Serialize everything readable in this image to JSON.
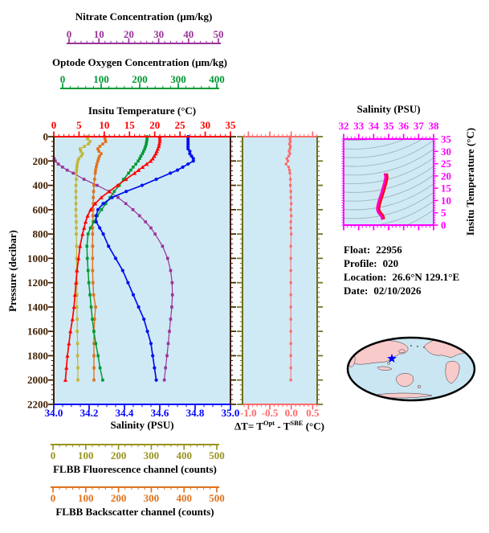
{
  "info": {
    "rows": [
      {
        "label": "Float:",
        "value": "22956"
      },
      {
        "label": "Profile:",
        "value": "020"
      },
      {
        "label": "Location:",
        "value": "26.6°N  129.1°E"
      },
      {
        "label": "Date:",
        "value": "02/10/2026"
      }
    ]
  },
  "colors": {
    "plot_bg": "#cfeaf5",
    "frame": "#401f00",
    "mid_spine": "#6e6e1e",
    "contour": "#9fb4ba"
  },
  "axes": {
    "nitrate": {
      "title": "Nitrate Concentration (μm/kg)",
      "color": "#993399",
      "ticks": [
        "0",
        "10",
        "20",
        "30",
        "40",
        "50"
      ],
      "minor": 2
    },
    "oxygen": {
      "title": "Optode Oxygen Concentration (μm/kg)",
      "color": "#009933",
      "ticks": [
        "0",
        "100",
        "200",
        "300",
        "400"
      ],
      "minor": 20
    },
    "temperature": {
      "title": "Insitu Temperature (°C)",
      "color": "#ff0000",
      "ticks": [
        "0",
        "5",
        "10",
        "15",
        "20",
        "25",
        "30",
        "35"
      ],
      "minor": 1
    },
    "pressure": {
      "title": "Pressure (decibar)",
      "color": "#401f00",
      "ticks": [
        "0",
        "200",
        "400",
        "600",
        "800",
        "1000",
        "1200",
        "1400",
        "1600",
        "1800",
        "2000",
        "2200"
      ],
      "minor": 40
    },
    "salinity": {
      "title": "Salinity (PSU)",
      "color": "#0000ff",
      "ticks": [
        "34.0",
        "34.2",
        "34.4",
        "34.6",
        "34.8",
        "35.0"
      ],
      "minor": 0.05
    },
    "fluorescence": {
      "title": "FLBB Fluorescence channel (counts)",
      "color": "#99941f",
      "ticks": [
        "0",
        "100",
        "200",
        "300",
        "400",
        "500"
      ],
      "minor": 20
    },
    "backscatter": {
      "title": "FLBB Backscatter channel (counts)",
      "color": "#e0721c",
      "ticks": [
        "0",
        "100",
        "200",
        "300",
        "400",
        "500"
      ],
      "minor": 20
    },
    "deltaT": {
      "label_pre": "ΔT= T",
      "label_sup1": "Opt",
      "label_mid": " - T",
      "label_sup2": "SBE",
      "label_post": " (°C)",
      "color": "#ff6b6b",
      "ticks": [
        "-1.0",
        "-0.5",
        "0.0",
        "0.5"
      ],
      "minor": 0.1
    },
    "ts_salinity": {
      "title": "Salinity (PSU)",
      "color": "#ff00ff",
      "ticks": [
        "32",
        "33",
        "34",
        "35",
        "36",
        "37",
        "38"
      ],
      "minor": 0.25
    },
    "ts_temperature": {
      "title": "Insitu Temperature (°C)",
      "color": "#ff00ff",
      "ticks": [
        "0",
        "5",
        "10",
        "15",
        "20",
        "25",
        "30",
        "35"
      ],
      "minor": 1
    }
  },
  "chart_data": [
    {
      "type": "line",
      "name": "vertical-profiles",
      "y_axis": {
        "label": "Pressure (decibar)",
        "range": [
          0,
          2200
        ],
        "direction": "down"
      },
      "pressure_db": [
        0,
        20,
        40,
        60,
        80,
        100,
        120,
        140,
        160,
        180,
        200,
        225,
        250,
        275,
        300,
        350,
        400,
        450,
        500,
        550,
        600,
        650,
        700,
        750,
        800,
        900,
        1000,
        1100,
        1200,
        1300,
        1400,
        1500,
        1600,
        1700,
        1800,
        1900,
        2000
      ],
      "series": [
        {
          "name": "Salinity",
          "units": "PSU",
          "color": "#0011ee",
          "marker": "circle",
          "x_range": [
            34.0,
            35.0
          ],
          "values": [
            34.76,
            34.76,
            34.76,
            34.76,
            34.76,
            34.76,
            34.77,
            34.77,
            34.78,
            34.79,
            34.79,
            34.76,
            34.73,
            34.7,
            34.66,
            34.58,
            34.5,
            34.41,
            34.33,
            34.28,
            34.25,
            34.24,
            34.24,
            34.26,
            34.28,
            34.31,
            34.35,
            34.39,
            34.42,
            34.45,
            34.48,
            34.51,
            34.53,
            34.55,
            34.56,
            34.57,
            34.58
          ]
        },
        {
          "name": "Insitu Temperature",
          "units": "°C",
          "color": "#ff0000",
          "marker": "triangle",
          "x_range": [
            0,
            35
          ],
          "values": [
            21.0,
            21.0,
            21.0,
            20.9,
            20.8,
            20.6,
            20.4,
            20.2,
            19.9,
            19.6,
            19.2,
            18.4,
            17.6,
            16.8,
            16.0,
            14.3,
            12.6,
            11.0,
            9.4,
            8.2,
            7.3,
            6.7,
            6.3,
            6.0,
            5.7,
            5.2,
            4.9,
            4.6,
            4.4,
            4.2,
            4.0,
            3.7,
            3.3,
            3.0,
            2.7,
            2.5,
            2.3
          ]
        },
        {
          "name": "Optode Oxygen Concentration",
          "units": "μm/kg",
          "color": "#009933",
          "marker": "square",
          "x_range": [
            0,
            400
          ],
          "values": [
            219,
            219,
            218,
            217,
            215,
            213,
            210,
            207,
            203,
            200,
            196,
            190,
            183,
            177,
            171,
            158,
            147,
            134,
            123,
            112,
            101,
            90,
            81,
            72,
            66,
            63,
            64,
            66,
            68,
            71,
            74,
            77,
            81,
            86,
            92,
            97,
            104
          ]
        },
        {
          "name": "Nitrate Concentration",
          "units": "μm/kg",
          "color": "#993399",
          "marker": "square",
          "x_range": [
            0,
            50
          ],
          "values": [
            null,
            null,
            null,
            null,
            null,
            null,
            null,
            null,
            null,
            -5.0,
            -4.6,
            -3.6,
            -2.2,
            -0.6,
            1.4,
            5.0,
            9.4,
            13.4,
            16.4,
            19.0,
            21.4,
            23.6,
            25.6,
            27.4,
            28.8,
            31.3,
            33.0,
            34.0,
            34.5,
            34.6,
            34.4,
            34.0,
            33.6,
            33.2,
            32.8,
            32.3,
            31.9
          ]
        },
        {
          "name": "FLBB Fluorescence channel",
          "units": "counts",
          "color": "#c2b535",
          "marker": "square",
          "x_range": [
            0,
            500
          ],
          "values": [
            103,
            106,
            113,
            108,
            96,
            83,
            85,
            90,
            86,
            79,
            76,
            74,
            73,
            72,
            71,
            71,
            70,
            70,
            70,
            70,
            70,
            70,
            71,
            71,
            71,
            72,
            72,
            72,
            73,
            73,
            73,
            74,
            74,
            75,
            75,
            76,
            76
          ]
        },
        {
          "name": "FLBB Backscatter channel",
          "units": "counts",
          "color": "#e0721c",
          "marker": "square",
          "x_range": [
            0,
            500
          ],
          "values": [
            157,
            159,
            161,
            152,
            143,
            137,
            140,
            147,
            142,
            139,
            137,
            134,
            132,
            130,
            129,
            127,
            125,
            124,
            123,
            123,
            122,
            122,
            122,
            121,
            121,
            121,
            121,
            121,
            122,
            124,
            130,
            127,
            125,
            125,
            125,
            125,
            125
          ]
        }
      ]
    },
    {
      "type": "line",
      "name": "temperature-difference-profile",
      "x_axis": {
        "label": "ΔT= TOpt - TSBE (°C)",
        "ticks": [
          -1.0,
          -0.5,
          0.0,
          0.5
        ]
      },
      "y_axis": {
        "label": "Pressure (decibar)",
        "range": [
          0,
          2200
        ],
        "direction": "down"
      },
      "color": "#ff6b6b",
      "pressure_db_ref": "vertical-profiles.pressure_db",
      "values": [
        -0.02,
        -0.03,
        -0.02,
        -0.04,
        -0.02,
        -0.03,
        -0.05,
        -0.03,
        -0.06,
        -0.1,
        -0.08,
        -0.12,
        -0.06,
        -0.04,
        -0.03,
        -0.02,
        -0.02,
        -0.01,
        -0.01,
        0.0,
        -0.01,
        0.0,
        -0.01,
        -0.01,
        0.0,
        -0.01,
        -0.01,
        -0.01,
        -0.01,
        -0.01,
        -0.01,
        -0.01,
        -0.01,
        -0.01,
        -0.01,
        -0.01,
        -0.01
      ]
    },
    {
      "type": "line",
      "name": "ts-diagram",
      "x_axis": {
        "label": "Salinity (PSU)",
        "range": [
          32,
          38
        ]
      },
      "y_axis": {
        "label": "Insitu Temperature (°C)",
        "range": [
          0,
          35
        ]
      },
      "note": "T-S curve built from the Salinity and Insitu Temperature series of vertical-profiles; light gray isopycnal contours in background",
      "curve_colors": [
        "#ff0000",
        "#ff00cc"
      ],
      "isopycnal_count": 14
    }
  ],
  "map": {
    "projection": "global, Pacific-centered",
    "marker": {
      "symbol": "star",
      "color": "#0000ff",
      "location": "26.6°N 129.1°E"
    },
    "land_color": "#f8caca",
    "ocean_color": "#c9e6f2",
    "coast_color": "#333333",
    "outline_color": "#000000"
  }
}
